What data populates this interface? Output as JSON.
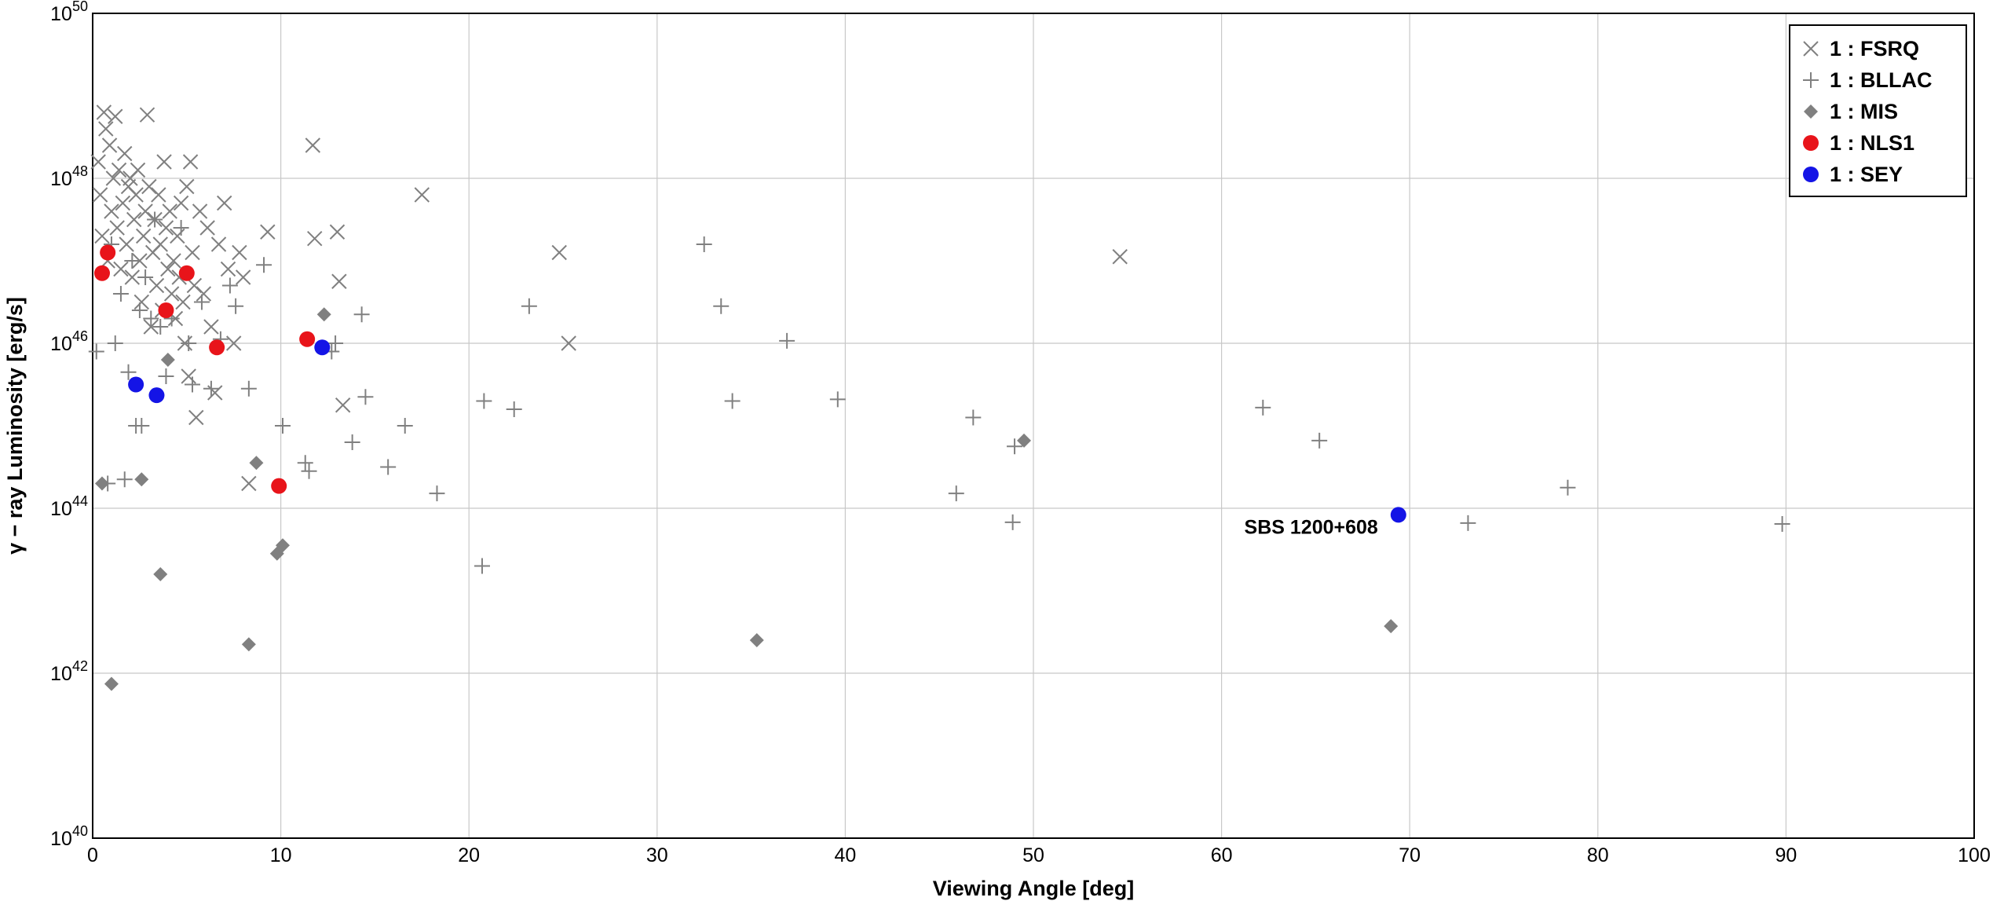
{
  "chart_data": {
    "type": "scatter",
    "title": "",
    "xlabel": "Viewing Angle [deg]",
    "ylabel": "γ − ray Luminosity [erg/s]",
    "xlim": [
      0,
      100
    ],
    "ylim_log10": [
      40,
      50
    ],
    "yscale": "log",
    "grid": true,
    "legend_position": "top-right",
    "x_ticks": [
      "0",
      "10",
      "20",
      "30",
      "40",
      "50",
      "60",
      "70",
      "80",
      "90",
      "100"
    ],
    "y_ticks": [
      {
        "base": "10",
        "exp": "40"
      },
      {
        "base": "10",
        "exp": "42"
      },
      {
        "base": "10",
        "exp": "44"
      },
      {
        "base": "10",
        "exp": "46"
      },
      {
        "base": "10",
        "exp": "48"
      },
      {
        "base": "10",
        "exp": "50"
      }
    ],
    "annotations": [
      {
        "text": "SBS 1200+608",
        "x": 69.4,
        "log10_y": 43.92
      }
    ],
    "series": [
      {
        "name": "1 : FSRQ",
        "marker": "x",
        "color": "#808080",
        "points": [
          [
            0.3,
            48.2
          ],
          [
            0.4,
            47.8
          ],
          [
            0.5,
            47.3
          ],
          [
            0.6,
            48.8
          ],
          [
            0.7,
            48.6
          ],
          [
            0.8,
            47.0
          ],
          [
            0.9,
            48.4
          ],
          [
            1.0,
            47.6
          ],
          [
            1.1,
            48.0
          ],
          [
            1.2,
            48.75
          ],
          [
            1.3,
            47.4
          ],
          [
            1.4,
            48.1
          ],
          [
            1.5,
            46.9
          ],
          [
            1.6,
            47.7
          ],
          [
            1.7,
            48.3
          ],
          [
            1.8,
            47.2
          ],
          [
            1.9,
            47.9
          ],
          [
            2.0,
            48.0
          ],
          [
            2.1,
            46.8
          ],
          [
            2.2,
            47.5
          ],
          [
            2.3,
            47.8
          ],
          [
            2.4,
            48.1
          ],
          [
            2.5,
            47.0
          ],
          [
            2.6,
            46.5
          ],
          [
            2.7,
            47.3
          ],
          [
            2.8,
            47.6
          ],
          [
            2.9,
            48.77
          ],
          [
            3.0,
            47.9
          ],
          [
            3.1,
            46.2
          ],
          [
            3.2,
            47.1
          ],
          [
            3.3,
            47.5
          ],
          [
            3.4,
            46.7
          ],
          [
            3.5,
            47.8
          ],
          [
            3.6,
            47.2
          ],
          [
            3.7,
            46.4
          ],
          [
            3.8,
            48.2
          ],
          [
            3.9,
            47.4
          ],
          [
            4.0,
            46.9
          ],
          [
            4.1,
            47.6
          ],
          [
            4.2,
            46.6
          ],
          [
            4.3,
            47.0
          ],
          [
            4.4,
            46.3
          ],
          [
            4.5,
            47.3
          ],
          [
            4.6,
            46.8
          ],
          [
            4.7,
            47.7
          ],
          [
            4.8,
            46.5
          ],
          [
            4.9,
            46.0
          ],
          [
            5.0,
            47.9
          ],
          [
            5.1,
            45.6
          ],
          [
            5.2,
            48.2
          ],
          [
            5.3,
            47.1
          ],
          [
            5.4,
            46.7
          ],
          [
            5.5,
            45.1
          ],
          [
            5.7,
            47.6
          ],
          [
            5.9,
            46.6
          ],
          [
            6.1,
            47.4
          ],
          [
            6.3,
            46.2
          ],
          [
            6.5,
            45.4
          ],
          [
            6.7,
            47.2
          ],
          [
            7.0,
            47.7
          ],
          [
            7.2,
            46.9
          ],
          [
            7.5,
            46.0
          ],
          [
            7.8,
            47.1
          ],
          [
            8.0,
            46.8
          ],
          [
            8.3,
            44.3
          ],
          [
            9.3,
            47.35
          ],
          [
            11.7,
            48.4
          ],
          [
            11.8,
            47.27
          ],
          [
            13.0,
            47.35
          ],
          [
            13.1,
            46.75
          ],
          [
            13.3,
            45.25
          ],
          [
            17.5,
            47.8
          ],
          [
            24.8,
            47.1
          ],
          [
            25.3,
            46.0
          ],
          [
            54.6,
            47.05
          ]
        ]
      },
      {
        "name": "1 : BLLAC",
        "marker": "+",
        "color": "#808080",
        "points": [
          [
            0.2,
            45.9
          ],
          [
            0.8,
            44.3
          ],
          [
            1.0,
            47.2
          ],
          [
            1.2,
            46.0
          ],
          [
            1.5,
            46.6
          ],
          [
            1.7,
            44.35
          ],
          [
            1.9,
            45.65
          ],
          [
            2.1,
            47.0
          ],
          [
            2.3,
            45.0
          ],
          [
            2.5,
            46.4
          ],
          [
            2.6,
            45.0
          ],
          [
            2.8,
            46.8
          ],
          [
            3.1,
            46.3
          ],
          [
            3.3,
            47.5
          ],
          [
            3.6,
            46.2
          ],
          [
            3.9,
            45.6
          ],
          [
            4.2,
            46.3
          ],
          [
            4.7,
            47.4
          ],
          [
            5.1,
            46.0
          ],
          [
            5.3,
            45.5
          ],
          [
            5.8,
            46.5
          ],
          [
            6.3,
            45.45
          ],
          [
            6.8,
            46.05
          ],
          [
            7.3,
            46.7
          ],
          [
            7.6,
            46.45
          ],
          [
            8.3,
            45.45
          ],
          [
            9.1,
            46.95
          ],
          [
            10.1,
            45.0
          ],
          [
            11.3,
            44.55
          ],
          [
            11.5,
            44.45
          ],
          [
            12.7,
            45.9
          ],
          [
            12.9,
            46.0
          ],
          [
            13.8,
            44.8
          ],
          [
            14.3,
            46.35
          ],
          [
            14.5,
            45.35
          ],
          [
            15.7,
            44.5
          ],
          [
            16.6,
            45.0
          ],
          [
            18.3,
            44.18
          ],
          [
            20.7,
            43.3
          ],
          [
            20.8,
            45.3
          ],
          [
            22.4,
            45.2
          ],
          [
            23.2,
            46.45
          ],
          [
            32.5,
            47.2
          ],
          [
            33.4,
            46.45
          ],
          [
            34.0,
            45.3
          ],
          [
            36.9,
            46.03
          ],
          [
            39.6,
            45.32
          ],
          [
            45.9,
            44.18
          ],
          [
            46.8,
            45.1
          ],
          [
            48.9,
            43.83
          ],
          [
            49.0,
            44.75
          ],
          [
            62.2,
            45.22
          ],
          [
            65.2,
            44.82
          ],
          [
            73.1,
            43.82
          ],
          [
            78.4,
            44.25
          ],
          [
            89.8,
            43.81
          ]
        ]
      },
      {
        "name": "1 : MIS",
        "marker": "diamond",
        "color": "#808080",
        "points": [
          [
            0.5,
            44.3
          ],
          [
            1.0,
            41.87
          ],
          [
            2.6,
            44.35
          ],
          [
            3.6,
            43.2
          ],
          [
            4.0,
            45.8
          ],
          [
            8.3,
            42.35
          ],
          [
            8.7,
            44.55
          ],
          [
            9.8,
            43.45
          ],
          [
            10.1,
            43.55
          ],
          [
            12.3,
            46.35
          ],
          [
            35.3,
            42.4
          ],
          [
            49.5,
            44.82
          ],
          [
            69.0,
            42.57
          ]
        ]
      },
      {
        "name": "1 : NLS1",
        "marker": "circle",
        "color": "#e8141a",
        "points": [
          [
            0.5,
            46.85
          ],
          [
            0.8,
            47.1
          ],
          [
            3.9,
            46.4
          ],
          [
            5.0,
            46.85
          ],
          [
            6.6,
            45.95
          ],
          [
            9.9,
            44.27
          ],
          [
            11.4,
            46.05
          ]
        ]
      },
      {
        "name": "1 : SEY",
        "marker": "circle",
        "color": "#1414e6",
        "points": [
          [
            2.3,
            45.5
          ],
          [
            3.4,
            45.37
          ],
          [
            12.2,
            45.95
          ],
          [
            69.4,
            43.92
          ]
        ]
      }
    ]
  }
}
